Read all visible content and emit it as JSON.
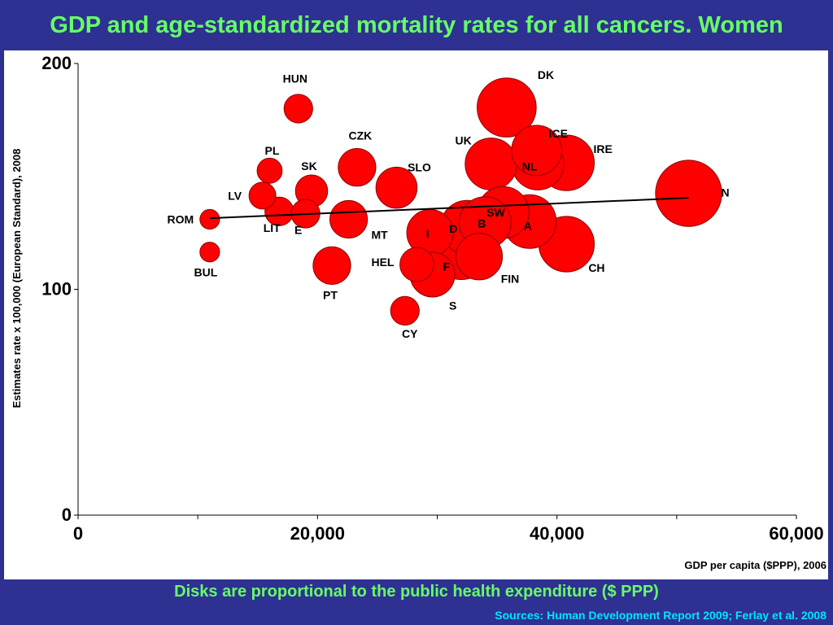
{
  "slide": {
    "title": "GDP and age-standardized mortality rates for all cancers. Women",
    "caption": "Disks are proportional to the public health expenditure ($ PPP)",
    "sources": "Sources: Human Development Report 2009; Ferlay et al. 2008"
  },
  "colors": {
    "background": "#2e3192",
    "title": "#66ff66",
    "sources": "#00e5ff",
    "bubble_fill": "#ff0000",
    "bubble_stroke": "#8b0000"
  },
  "chart_data": {
    "type": "scatter",
    "title": "",
    "xlabel": "GDP per capita ($PPP), 2006",
    "ylabel": "Estimates rate x 100,000 (European Standard), 2008",
    "xlim": [
      0,
      60000
    ],
    "ylim": [
      0,
      200
    ],
    "xticks": [
      {
        "value": 0,
        "label": "0"
      },
      {
        "value": 20000,
        "label": "20,000"
      },
      {
        "value": 40000,
        "label": "40,000"
      },
      {
        "value": 60000,
        "label": "60,000"
      }
    ],
    "yticks": [
      {
        "value": 0,
        "label": "0"
      },
      {
        "value": 100,
        "label": "100"
      },
      {
        "value": 200,
        "label": "200"
      }
    ],
    "grid": false,
    "bubble_size_meaning": "public health expenditure ($ PPP)",
    "trendline": {
      "x": [
        11000,
        51000
      ],
      "y": [
        131.5,
        140.5
      ]
    },
    "points": [
      {
        "label": "HUN",
        "x": 18400,
        "y": 180,
        "size": 1.6
      },
      {
        "label": "DK",
        "x": 35800,
        "y": 180.5,
        "size": 3.3
      },
      {
        "label": "ICE",
        "x": 38300,
        "y": 161.5,
        "size": 2.8
      },
      {
        "label": "IRE",
        "x": 40800,
        "y": 156,
        "size": 3.1
      },
      {
        "label": "NL",
        "x": 38400,
        "y": 155.5,
        "size": 2.9
      },
      {
        "label": "UK",
        "x": 34500,
        "y": 155.5,
        "size": 2.9
      },
      {
        "label": "CZK",
        "x": 23300,
        "y": 154,
        "size": 2.1
      },
      {
        "label": "PL",
        "x": 16000,
        "y": 152.5,
        "size": 1.4
      },
      {
        "label": "SLO",
        "x": 26600,
        "y": 145,
        "size": 2.3
      },
      {
        "label": "SK",
        "x": 19500,
        "y": 143.5,
        "size": 1.8
      },
      {
        "label": "N",
        "x": 51000,
        "y": 142.5,
        "size": 3.7
      },
      {
        "label": "LV",
        "x": 15400,
        "y": 141.5,
        "size": 1.5
      },
      {
        "label": "SW",
        "x": 35500,
        "y": 134,
        "size": 2.9
      },
      {
        "label": "LIT",
        "x": 16800,
        "y": 134.5,
        "size": 1.6
      },
      {
        "label": "E",
        "x": 19000,
        "y": 133.5,
        "size": 1.6
      },
      {
        "label": "ROM",
        "x": 11000,
        "y": 131,
        "size": 1.1
      },
      {
        "label": "MT",
        "x": 22600,
        "y": 131,
        "size": 2.1
      },
      {
        "label": "B",
        "x": 34000,
        "y": 129.5,
        "size": 2.9
      },
      {
        "label": "A",
        "x": 37700,
        "y": 130,
        "size": 3.0
      },
      {
        "label": "D",
        "x": 32500,
        "y": 127.5,
        "size": 3.0
      },
      {
        "label": "I",
        "x": 29400,
        "y": 125,
        "size": 2.6
      },
      {
        "label": "F",
        "x": 32000,
        "y": 117,
        "size": 3.2
      },
      {
        "label": "CH",
        "x": 40800,
        "y": 120,
        "size": 3.1
      },
      {
        "label": "BUL",
        "x": 11000,
        "y": 116.5,
        "size": 1.1
      },
      {
        "label": "FIN",
        "x": 33500,
        "y": 114.5,
        "size": 2.6
      },
      {
        "label": "HEL",
        "x": 28300,
        "y": 111,
        "size": 1.9
      },
      {
        "label": "PT",
        "x": 21200,
        "y": 110.5,
        "size": 2.1
      },
      {
        "label": "S",
        "x": 29600,
        "y": 106.5,
        "size": 2.5
      },
      {
        "label": "CY",
        "x": 27300,
        "y": 90.5,
        "size": 1.6
      }
    ]
  }
}
